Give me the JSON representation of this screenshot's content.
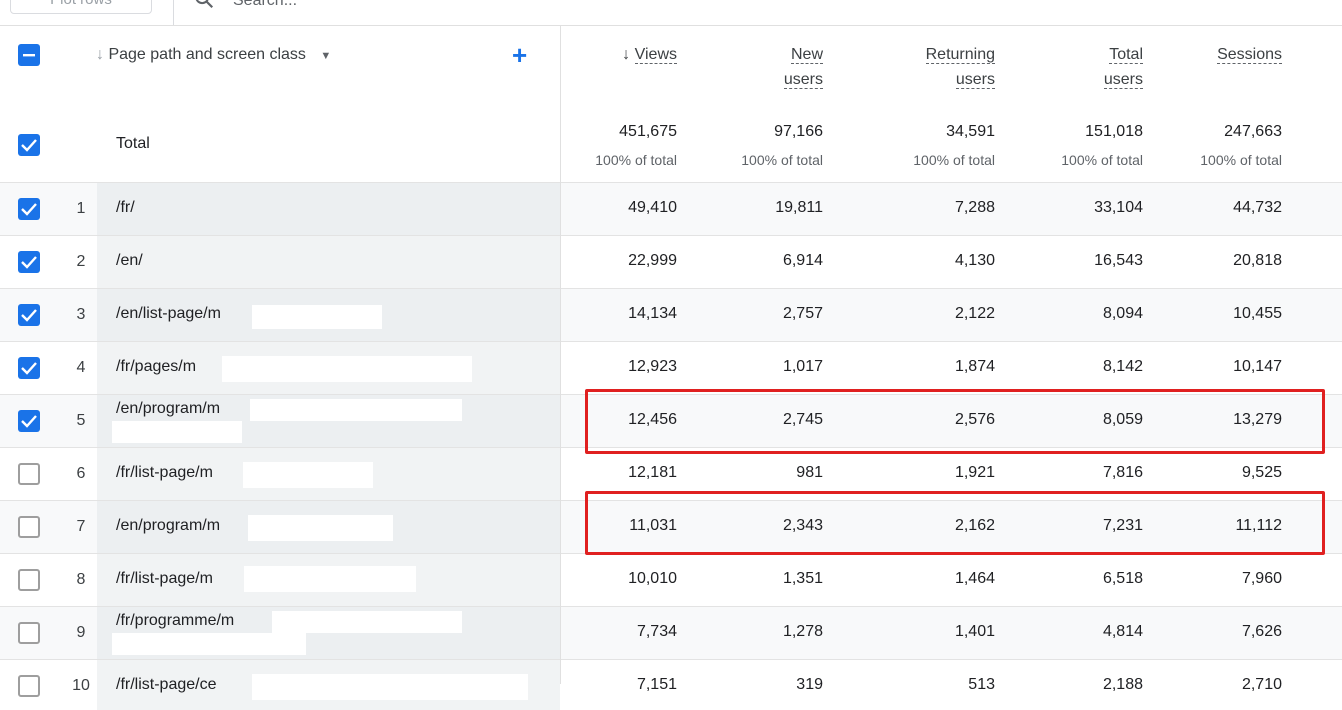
{
  "toolbar": {
    "plot_rows_label": "Plot rows",
    "search_placeholder": "Search..."
  },
  "header": {
    "dimension_label": "Page path and screen class",
    "columns": [
      {
        "line1": "Views",
        "line2": "",
        "sorted": true
      },
      {
        "line1": "New",
        "line2": "users"
      },
      {
        "line1": "Returning",
        "line2": "users"
      },
      {
        "line1": "Total",
        "line2": "users"
      },
      {
        "line1": "Sessions",
        "line2": ""
      }
    ]
  },
  "total": {
    "label": "Total",
    "values": [
      "451,675",
      "97,166",
      "34,591",
      "151,018",
      "247,663"
    ],
    "pct": [
      "100% of total",
      "100% of total",
      "100% of total",
      "100% of total",
      "100% of total"
    ]
  },
  "rows": [
    {
      "rank": "1",
      "path": "/fr/",
      "values": [
        "49,410",
        "19,811",
        "7,288",
        "33,104",
        "44,732"
      ]
    },
    {
      "rank": "2",
      "path": "/en/",
      "values": [
        "22,999",
        "6,914",
        "4,130",
        "16,543",
        "20,818"
      ]
    },
    {
      "rank": "3",
      "path": "/en/list-page/m",
      "values": [
        "14,134",
        "2,757",
        "2,122",
        "8,094",
        "10,455"
      ]
    },
    {
      "rank": "4",
      "path": "/fr/pages/m",
      "values": [
        "12,923",
        "1,017",
        "1,874",
        "8,142",
        "10,147"
      ]
    },
    {
      "rank": "5",
      "path": "/en/program/m",
      "values": [
        "12,456",
        "2,745",
        "2,576",
        "8,059",
        "13,279"
      ]
    },
    {
      "rank": "6",
      "path": "/fr/list-page/m",
      "values": [
        "12,181",
        "981",
        "1,921",
        "7,816",
        "9,525"
      ]
    },
    {
      "rank": "7",
      "path": "/en/program/m",
      "values": [
        "11,031",
        "2,343",
        "2,162",
        "7,231",
        "11,112"
      ]
    },
    {
      "rank": "8",
      "path": "/fr/list-page/m",
      "values": [
        "10,010",
        "1,351",
        "1,464",
        "6,518",
        "7,960"
      ]
    },
    {
      "rank": "9",
      "path": "/fr/programme/m",
      "values": [
        "7,734",
        "1,278",
        "1,401",
        "4,814",
        "7,626"
      ]
    },
    {
      "rank": "10",
      "path": "/fr/list-page/ce",
      "values": [
        "7,151",
        "319",
        "513",
        "2,188",
        "2,710"
      ]
    }
  ],
  "checked_rows": [
    true,
    true,
    true,
    true,
    true,
    false,
    false,
    false,
    false,
    false
  ],
  "colors": {
    "accent": "#1a73e8",
    "highlight": "#e02020"
  }
}
